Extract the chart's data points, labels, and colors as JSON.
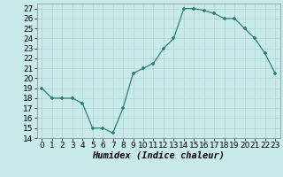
{
  "x": [
    0,
    1,
    2,
    3,
    4,
    5,
    6,
    7,
    8,
    9,
    10,
    11,
    12,
    13,
    14,
    15,
    16,
    17,
    18,
    19,
    20,
    21,
    22,
    23
  ],
  "y": [
    19,
    18,
    18,
    18,
    17.5,
    15,
    15,
    14.5,
    17,
    20.5,
    21,
    21.5,
    23,
    24,
    27,
    27,
    26.8,
    26.5,
    26,
    26,
    25,
    24,
    22.5,
    20.5
  ],
  "xlabel": "Humidex (Indice chaleur)",
  "ylim": [
    14,
    27.5
  ],
  "yticks": [
    14,
    15,
    16,
    17,
    18,
    19,
    20,
    21,
    22,
    23,
    24,
    25,
    26,
    27
  ],
  "xticks": [
    0,
    1,
    2,
    3,
    4,
    5,
    6,
    7,
    8,
    9,
    10,
    11,
    12,
    13,
    14,
    15,
    16,
    17,
    18,
    19,
    20,
    21,
    22,
    23
  ],
  "line_color": "#2d7f72",
  "marker_color": "#2d7f72",
  "bg_color": "#c8eaea",
  "grid_color": "#b0d4cc",
  "label_fontsize": 7.5,
  "tick_fontsize": 6.5
}
